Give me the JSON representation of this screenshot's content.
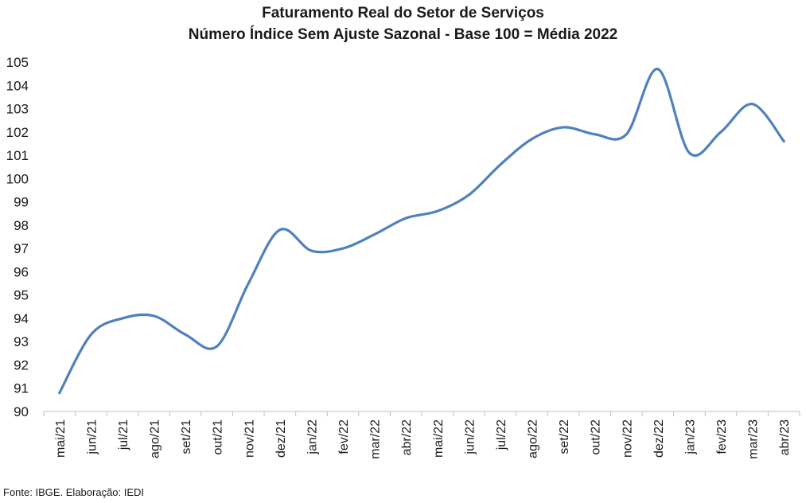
{
  "chart_data": {
    "type": "line",
    "title": "Faturamento Real do Setor de Serviços",
    "subtitle": "Número Índice Sem Ajuste Sazonal - Base 100 = Média 2022",
    "xlabel": "",
    "ylabel": "",
    "ylim": [
      90,
      105
    ],
    "yticks": [
      90,
      91,
      92,
      93,
      94,
      95,
      96,
      97,
      98,
      99,
      100,
      101,
      102,
      103,
      104,
      105
    ],
    "grid": false,
    "legend": "none",
    "categories": [
      "mai/21",
      "jun/21",
      "jul/21",
      "ago/21",
      "set/21",
      "out/21",
      "nov/21",
      "dez/21",
      "jan/22",
      "fev/22",
      "mar/22",
      "abr/22",
      "mai/22",
      "jun/22",
      "jul/22",
      "ago/22",
      "set/22",
      "out/22",
      "nov/22",
      "dez/22",
      "jan/23",
      "fev/23",
      "mar/23",
      "abr/23"
    ],
    "series": [
      {
        "color": "#4f81bd",
        "values": [
          90.8,
          93.3,
          94.0,
          94.1,
          93.3,
          92.8,
          95.5,
          97.8,
          96.9,
          97.0,
          97.6,
          98.3,
          98.6,
          99.3,
          100.6,
          101.7,
          102.2,
          101.9,
          101.9,
          104.7,
          101.1,
          102.0,
          103.2,
          101.6
        ]
      }
    ]
  },
  "source": "Fonte: IBGE. Elaboração: IEDI"
}
